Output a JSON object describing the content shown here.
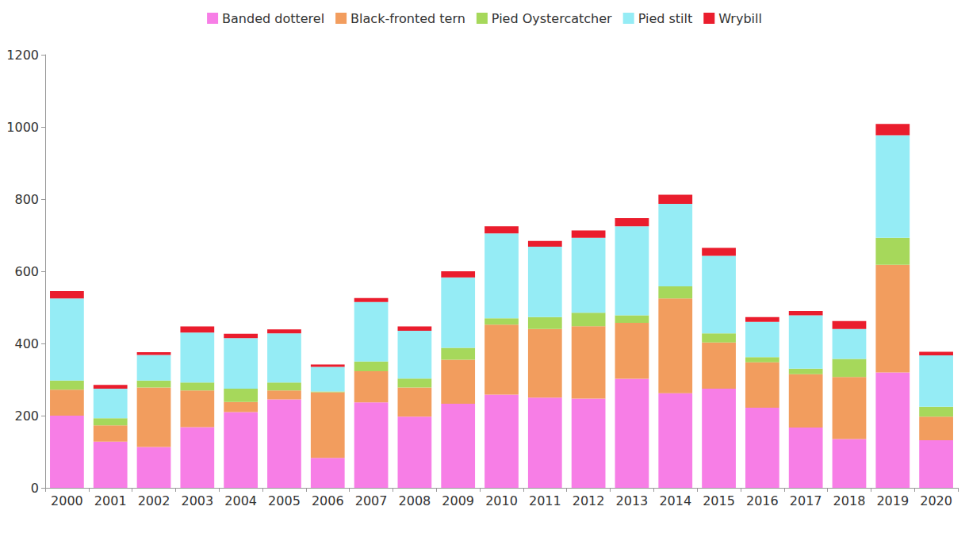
{
  "chart_data": {
    "type": "bar",
    "stacked": true,
    "grid": false,
    "legend": "top",
    "categories": [
      "2000",
      "2001",
      "2002",
      "2003",
      "2004",
      "2005",
      "2006",
      "2007",
      "2008",
      "2009",
      "2010",
      "2011",
      "2012",
      "2013",
      "2014",
      "2015",
      "2016",
      "2017",
      "2018",
      "2019",
      "2020"
    ],
    "series": [
      {
        "name": "Banded dotterel",
        "color": "#f77ee6",
        "values": [
          200,
          128,
          113,
          168,
          210,
          245,
          83,
          237,
          197,
          233,
          258,
          250,
          247,
          302,
          262,
          275,
          222,
          167,
          135,
          320,
          132
        ]
      },
      {
        "name": "Black-fronted tern",
        "color": "#f29d5e",
        "values": [
          72,
          45,
          165,
          102,
          28,
          25,
          182,
          86,
          81,
          122,
          194,
          190,
          201,
          155,
          263,
          128,
          126,
          148,
          172,
          298,
          65
        ]
      },
      {
        "name": "Pied Oystercatcher",
        "color": "#a6d85b",
        "values": [
          25,
          20,
          19,
          22,
          37,
          22,
          2,
          27,
          25,
          33,
          18,
          33,
          37,
          21,
          33,
          25,
          14,
          15,
          50,
          75,
          28
        ]
      },
      {
        "name": "Pied stilt",
        "color": "#95ecf5",
        "values": [
          228,
          82,
          71,
          138,
          140,
          136,
          68,
          165,
          132,
          195,
          235,
          195,
          208,
          247,
          229,
          215,
          98,
          148,
          83,
          284,
          142
        ]
      },
      {
        "name": "Wrybill",
        "color": "#ea1d2d",
        "values": [
          20,
          10,
          8,
          17,
          12,
          11,
          7,
          11,
          12,
          17,
          20,
          16,
          20,
          22,
          25,
          22,
          13,
          12,
          22,
          31,
          10
        ]
      }
    ],
    "ylim": [
      0,
      1200
    ],
    "yticks": [
      0,
      200,
      400,
      600,
      800,
      1000,
      1200
    ]
  }
}
